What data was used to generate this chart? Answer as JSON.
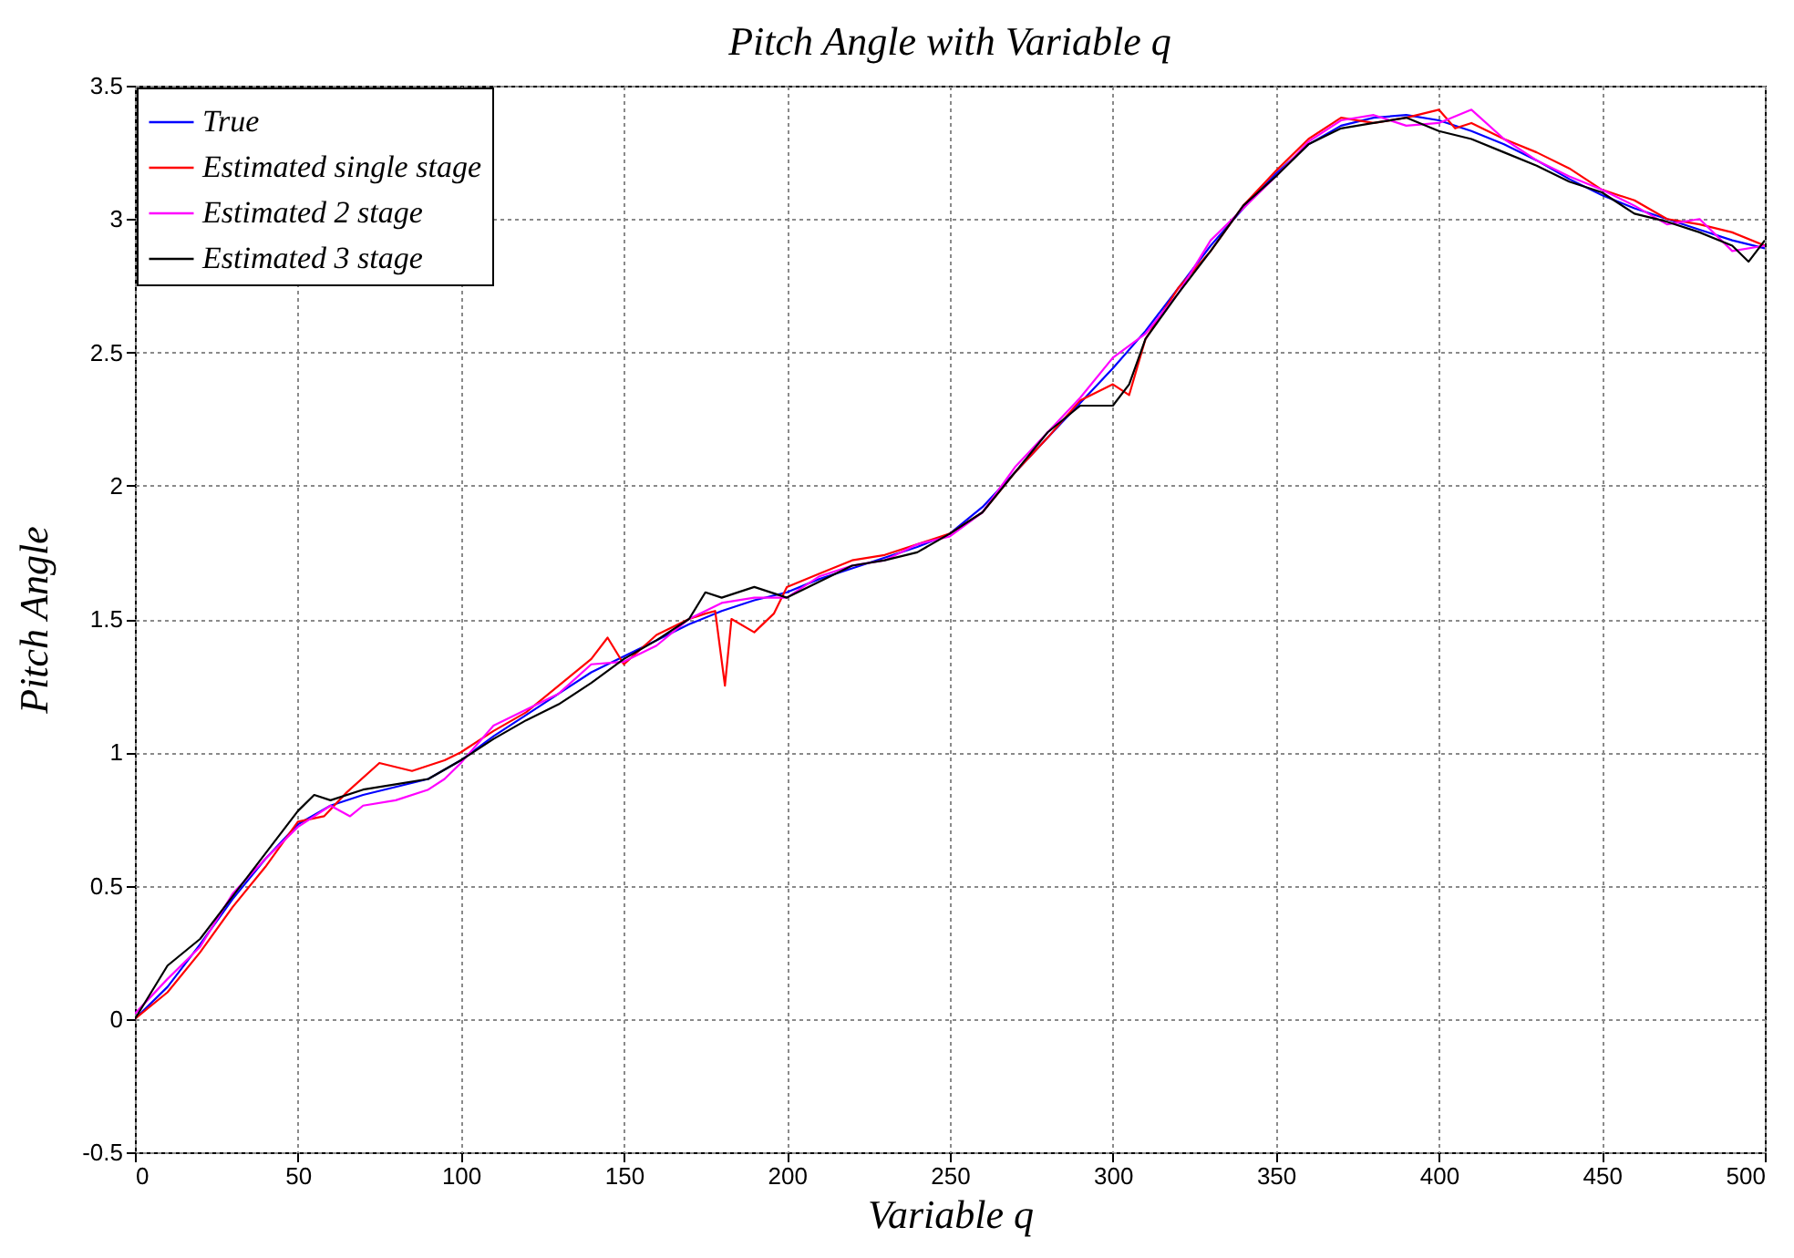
{
  "chart_data": {
    "type": "line",
    "title": "Pitch Angle with Variable q",
    "xlabel": "Variable q",
    "ylabel": "Pitch Angle",
    "xlim": [
      0,
      500
    ],
    "ylim": [
      -0.5,
      3.5
    ],
    "xticks": [
      0,
      50,
      100,
      150,
      200,
      250,
      300,
      350,
      400,
      450,
      500
    ],
    "yticks": [
      -0.5,
      0,
      0.5,
      1,
      1.5,
      2,
      2.5,
      3,
      3.5
    ],
    "grid": true,
    "legend": "top left",
    "series": [
      {
        "name": "True",
        "color": "#0000ff",
        "x": [
          0,
          10,
          20,
          30,
          40,
          50,
          60,
          70,
          80,
          90,
          100,
          110,
          120,
          130,
          140,
          150,
          160,
          170,
          180,
          190,
          200,
          210,
          220,
          230,
          240,
          250,
          260,
          270,
          280,
          290,
          300,
          310,
          320,
          330,
          340,
          350,
          360,
          370,
          380,
          390,
          400,
          410,
          420,
          430,
          440,
          450,
          460,
          470,
          480,
          490,
          500
        ],
        "values": [
          0,
          0.12,
          0.28,
          0.45,
          0.6,
          0.73,
          0.8,
          0.84,
          0.87,
          0.9,
          0.97,
          1.06,
          1.14,
          1.22,
          1.3,
          1.36,
          1.42,
          1.48,
          1.53,
          1.57,
          1.6,
          1.65,
          1.69,
          1.73,
          1.77,
          1.82,
          1.92,
          2.05,
          2.18,
          2.31,
          2.44,
          2.58,
          2.74,
          2.9,
          3.04,
          3.17,
          3.28,
          3.35,
          3.38,
          3.39,
          3.37,
          3.33,
          3.28,
          3.22,
          3.15,
          3.09,
          3.04,
          3,
          2.96,
          2.92,
          2.89
        ]
      },
      {
        "name": "Estimated single stage",
        "color": "#ff0000",
        "x": [
          0,
          10,
          20,
          30,
          40,
          50,
          58,
          65,
          75,
          85,
          95,
          100,
          110,
          120,
          130,
          140,
          145,
          150,
          160,
          170,
          175,
          178,
          181,
          183,
          190,
          196,
          200,
          210,
          220,
          230,
          240,
          250,
          260,
          270,
          280,
          290,
          300,
          305,
          310,
          320,
          330,
          340,
          350,
          360,
          370,
          380,
          390,
          400,
          405,
          410,
          420,
          430,
          440,
          450,
          460,
          470,
          480,
          490,
          500
        ],
        "values": [
          0,
          0.1,
          0.25,
          0.42,
          0.57,
          0.74,
          0.76,
          0.85,
          0.96,
          0.93,
          0.97,
          1,
          1.08,
          1.15,
          1.25,
          1.35,
          1.43,
          1.33,
          1.44,
          1.5,
          1.52,
          1.53,
          1.25,
          1.5,
          1.45,
          1.52,
          1.62,
          1.67,
          1.72,
          1.74,
          1.78,
          1.82,
          1.9,
          2.05,
          2.18,
          2.32,
          2.38,
          2.34,
          2.55,
          2.74,
          2.88,
          3.05,
          3.18,
          3.3,
          3.38,
          3.36,
          3.38,
          3.41,
          3.34,
          3.36,
          3.3,
          3.25,
          3.19,
          3.11,
          3.07,
          3,
          2.98,
          2.95,
          2.9
        ]
      },
      {
        "name": "Estimated 2 stage",
        "color": "#ff00ff",
        "x": [
          0,
          10,
          20,
          30,
          40,
          50,
          60,
          66,
          70,
          80,
          90,
          95,
          100,
          110,
          120,
          130,
          140,
          150,
          160,
          170,
          180,
          190,
          200,
          210,
          220,
          230,
          240,
          250,
          260,
          270,
          280,
          290,
          300,
          310,
          320,
          330,
          340,
          350,
          360,
          370,
          380,
          390,
          400,
          410,
          420,
          430,
          440,
          450,
          460,
          470,
          480,
          490,
          500
        ],
        "values": [
          0.02,
          0.15,
          0.27,
          0.47,
          0.6,
          0.72,
          0.8,
          0.76,
          0.8,
          0.82,
          0.86,
          0.9,
          0.96,
          1.1,
          1.16,
          1.22,
          1.33,
          1.34,
          1.4,
          1.5,
          1.56,
          1.58,
          1.58,
          1.66,
          1.7,
          1.72,
          1.78,
          1.81,
          1.9,
          2.07,
          2.2,
          2.33,
          2.48,
          2.57,
          2.72,
          2.92,
          3.04,
          3.16,
          3.29,
          3.37,
          3.39,
          3.35,
          3.36,
          3.41,
          3.3,
          3.22,
          3.16,
          3.11,
          3.05,
          2.98,
          3,
          2.88,
          2.9
        ]
      },
      {
        "name": "Estimated 3 stage",
        "color": "#000000",
        "x": [
          0,
          10,
          20,
          30,
          40,
          50,
          55,
          60,
          70,
          80,
          90,
          100,
          110,
          120,
          130,
          140,
          150,
          160,
          170,
          175,
          180,
          190,
          200,
          210,
          220,
          230,
          240,
          250,
          260,
          270,
          280,
          290,
          300,
          305,
          310,
          320,
          330,
          340,
          350,
          360,
          370,
          380,
          390,
          400,
          410,
          420,
          430,
          440,
          450,
          460,
          470,
          480,
          490,
          495,
          500
        ],
        "values": [
          0,
          0.2,
          0.3,
          0.46,
          0.62,
          0.78,
          0.84,
          0.82,
          0.86,
          0.88,
          0.9,
          0.97,
          1.05,
          1.12,
          1.18,
          1.26,
          1.35,
          1.42,
          1.5,
          1.6,
          1.58,
          1.62,
          1.58,
          1.64,
          1.7,
          1.72,
          1.75,
          1.82,
          1.9,
          2.05,
          2.2,
          2.3,
          2.3,
          2.38,
          2.55,
          2.72,
          2.88,
          3.05,
          3.16,
          3.28,
          3.34,
          3.36,
          3.38,
          3.33,
          3.3,
          3.25,
          3.2,
          3.14,
          3.1,
          3.02,
          2.99,
          2.95,
          2.9,
          2.84,
          2.92
        ]
      }
    ]
  }
}
